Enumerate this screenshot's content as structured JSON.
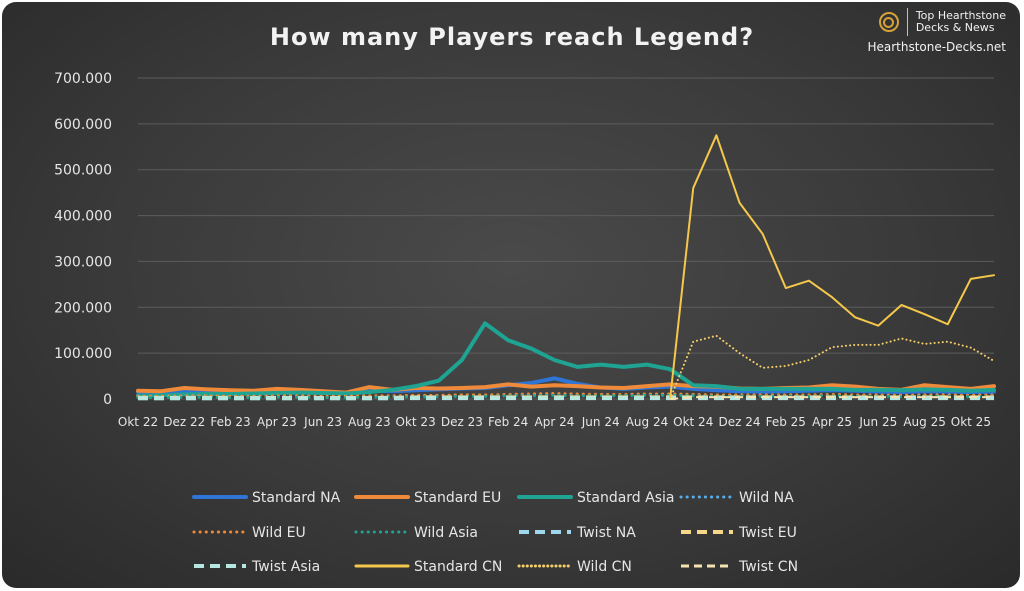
{
  "brand": {
    "name_line1": "Top Hearthstone",
    "name_line2": "Decks & News",
    "site": "Hearthstone-Decks.net",
    "logo_icon": "hearthstone-swirl-icon"
  },
  "chart_data": {
    "type": "line",
    "title": "How many Players reach Legend?",
    "xlabel": "",
    "ylabel": "",
    "ylim": [
      0,
      700000
    ],
    "yticks": [
      0,
      100000,
      200000,
      300000,
      400000,
      500000,
      600000,
      700000
    ],
    "ytick_labels": [
      "0",
      "100.000",
      "200.000",
      "300.000",
      "400.000",
      "500.000",
      "600.000",
      "700.000"
    ],
    "grid": true,
    "legend_position": "bottom",
    "x": [
      "Okt 22",
      "Nov 22",
      "Dez 22",
      "Jan 23",
      "Feb 23",
      "Mrz 23",
      "Apr 23",
      "Mai 23",
      "Jun 23",
      "Jul 23",
      "Aug 23",
      "Sep 23",
      "Okt 23",
      "Nov 23",
      "Dez 23",
      "Jan 24",
      "Feb 24",
      "Mrz 24",
      "Apr 24",
      "Mai 24",
      "Jun 24",
      "Jul 24",
      "Aug 24",
      "Sep 24",
      "Okt 24",
      "Nov 24",
      "Dez 24",
      "Jan 25",
      "Feb 25",
      "Mrz 25",
      "Apr 25",
      "Mai 25",
      "Jun 25",
      "Jul 25",
      "Aug 25",
      "Sep 25",
      "Okt 25",
      "Nov 25"
    ],
    "x_tick_labels": [
      "Okt 22",
      "Dez 22",
      "Feb 23",
      "Apr 23",
      "Jun 23",
      "Aug 23",
      "Okt 23",
      "Dez 23",
      "Feb 24",
      "Apr 24",
      "Jun 24",
      "Aug 24",
      "Okt 24",
      "Dez 24",
      "Feb 25",
      "Apr 25",
      "Jun 25",
      "Aug 25",
      "Okt 25"
    ],
    "series": [
      {
        "name": "Standard NA",
        "color": "#2e75d6",
        "style": "solid",
        "width": 4,
        "values": [
          15000,
          14000,
          17000,
          16000,
          15000,
          14000,
          16000,
          17000,
          15000,
          13000,
          18000,
          17000,
          19000,
          21000,
          23000,
          24000,
          30000,
          35000,
          45000,
          33000,
          25000,
          22000,
          25000,
          27000,
          22000,
          19000,
          17000,
          16000,
          17000,
          18000,
          19000,
          18000,
          16000,
          15000,
          17000,
          16000,
          15000,
          16000
        ]
      },
      {
        "name": "Standard EU",
        "color": "#ef8a3a",
        "style": "solid",
        "width": 4,
        "values": [
          18000,
          17000,
          24000,
          21000,
          19000,
          18000,
          22000,
          20000,
          17000,
          14000,
          26000,
          20000,
          24000,
          23000,
          24000,
          26000,
          32000,
          27000,
          30000,
          28000,
          25000,
          24000,
          28000,
          32000,
          28000,
          27000,
          23000,
          22000,
          24000,
          25000,
          30000,
          27000,
          22000,
          20000,
          30000,
          26000,
          22000,
          28000
        ]
      },
      {
        "name": "Standard Asia",
        "color": "#1fa392",
        "style": "solid",
        "width": 4,
        "values": [
          7000,
          8000,
          10000,
          11000,
          11000,
          12000,
          13000,
          14000,
          13000,
          12000,
          15000,
          20000,
          28000,
          40000,
          85000,
          165000,
          128000,
          110000,
          85000,
          70000,
          75000,
          70000,
          75000,
          65000,
          30000,
          28000,
          22000,
          22000,
          22000,
          22000,
          22000,
          20000,
          20000,
          19000,
          21000,
          20000,
          18000,
          20000
        ]
      },
      {
        "name": "Wild NA",
        "color": "#5aaee8",
        "style": "dotted-fine",
        "width": 3,
        "values": [
          5000,
          5000,
          6000,
          6000,
          5000,
          5000,
          6000,
          6000,
          5000,
          5000,
          6000,
          6000,
          7000,
          7000,
          8000,
          8000,
          9000,
          10000,
          11000,
          10000,
          9000,
          9000,
          10000,
          10000,
          9000,
          8000,
          8000,
          8000,
          8000,
          8000,
          9000,
          8000,
          8000,
          7000,
          8000,
          8000,
          7000,
          8000
        ]
      },
      {
        "name": "Wild EU",
        "color": "#ef8a3a",
        "style": "dotted-fine",
        "width": 3,
        "values": [
          6000,
          6000,
          7000,
          7000,
          6000,
          6000,
          7000,
          7000,
          6000,
          6000,
          7000,
          7000,
          8000,
          8000,
          9000,
          9000,
          10000,
          11000,
          12000,
          11000,
          10000,
          10000,
          11000,
          11000,
          10000,
          9000,
          9000,
          9000,
          9000,
          9000,
          10000,
          9000,
          9000,
          8000,
          9000,
          9000,
          8000,
          9000
        ]
      },
      {
        "name": "Wild Asia",
        "color": "#1fa392",
        "style": "dotted-fine",
        "width": 3,
        "values": [
          3000,
          3000,
          4000,
          4000,
          3000,
          3000,
          4000,
          4000,
          3000,
          3000,
          4000,
          4000,
          5000,
          5000,
          6000,
          6000,
          7000,
          7000,
          8000,
          7000,
          7000,
          7000,
          8000,
          8000,
          7000,
          6000,
          6000,
          6000,
          6000,
          6000,
          7000,
          6000,
          6000,
          5000,
          6000,
          6000,
          5000,
          6000
        ]
      },
      {
        "name": "Twist NA",
        "color": "#9fd8ec",
        "style": "dashed",
        "width": 4,
        "values": [
          2000,
          2000,
          2000,
          2000,
          2000,
          2000,
          2000,
          2000,
          2000,
          2000,
          2000,
          2000,
          3000,
          3000,
          3000,
          3000,
          3000,
          3000,
          3000,
          3000,
          3000,
          3000,
          3000,
          3000,
          3000,
          3000,
          3000,
          3000,
          3000,
          3000,
          3000,
          3000,
          3000,
          3000,
          3000,
          3000,
          3000,
          3000
        ]
      },
      {
        "name": "Twist EU",
        "color": "#f5d88a",
        "style": "dashed",
        "width": 4,
        "values": [
          2500,
          2500,
          2500,
          2500,
          2500,
          2500,
          2500,
          2500,
          2500,
          2500,
          2500,
          2500,
          3500,
          3500,
          3500,
          3500,
          3500,
          3500,
          3500,
          3500,
          3500,
          3500,
          3500,
          3500,
          3500,
          3500,
          3500,
          3500,
          3500,
          3500,
          3500,
          3500,
          3500,
          3500,
          3500,
          3500,
          3500,
          3500
        ]
      },
      {
        "name": "Twist Asia",
        "color": "#b6e6e0",
        "style": "dashed",
        "width": 4,
        "values": [
          1500,
          1500,
          1500,
          1500,
          1500,
          1500,
          1500,
          1500,
          1500,
          1500,
          1500,
          1500,
          2000,
          2000,
          2000,
          2000,
          2000,
          2000,
          2000,
          2000,
          2000,
          2000,
          2000,
          2000,
          2000,
          2000,
          2000,
          2000,
          2000,
          2000,
          2000,
          2000,
          2000,
          2000,
          2000,
          2000,
          2000,
          2000
        ]
      },
      {
        "name": "Standard CN",
        "color": "#f4c84a",
        "style": "solid",
        "width": 2,
        "values": [
          null,
          null,
          null,
          null,
          null,
          null,
          null,
          null,
          null,
          null,
          null,
          null,
          null,
          null,
          null,
          null,
          null,
          null,
          null,
          null,
          null,
          null,
          null,
          0,
          460000,
          575000,
          428000,
          360000,
          242000,
          258000,
          222000,
          178000,
          160000,
          205000,
          185000,
          163000,
          262000,
          270000
        ]
      },
      {
        "name": "Wild CN",
        "color": "#f5d06a",
        "style": "dotted",
        "width": 2,
        "values": [
          null,
          null,
          null,
          null,
          null,
          null,
          null,
          null,
          null,
          null,
          null,
          null,
          null,
          null,
          null,
          null,
          null,
          null,
          null,
          null,
          null,
          null,
          null,
          0,
          125000,
          138000,
          100000,
          68000,
          72000,
          85000,
          113000,
          118000,
          118000,
          132000,
          120000,
          125000,
          112000,
          83000
        ]
      },
      {
        "name": "Twist CN",
        "color": "#f5e3b0",
        "style": "dashed-thin",
        "width": 2,
        "values": [
          null,
          null,
          null,
          null,
          null,
          null,
          null,
          null,
          null,
          null,
          null,
          null,
          null,
          null,
          null,
          null,
          null,
          null,
          null,
          null,
          null,
          null,
          null,
          0,
          4000,
          4000,
          4000,
          4000,
          4000,
          4000,
          4000,
          4000,
          4000,
          4000,
          4000,
          4000,
          4000,
          4000
        ]
      }
    ]
  }
}
